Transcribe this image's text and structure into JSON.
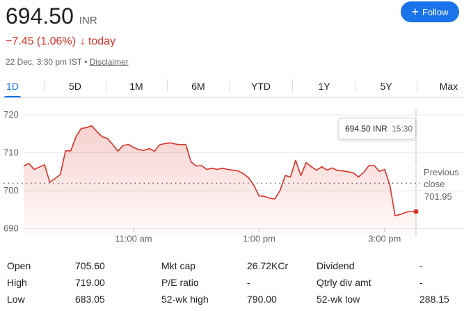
{
  "quote": {
    "price": "694.50",
    "currency": "INR",
    "change": "−7.45 (1.06%)",
    "change_arrow": "↓",
    "change_period": "today",
    "timestamp": "22 Dec, 3:30 pm IST",
    "separator": "•",
    "disclaimer": "Disclaimer",
    "follow_label": "Follow",
    "accent_color": "#1a73e8",
    "down_color": "#d93025"
  },
  "tabs": [
    "1D",
    "5D",
    "1M",
    "6M",
    "YTD",
    "1Y",
    "5Y",
    "Max"
  ],
  "active_tab": "1D",
  "chart_data": {
    "type": "line",
    "x_ticks": [
      "11:00 am",
      "1:00 pm",
      "3:00 pm"
    ],
    "y_ticks": [
      720,
      710,
      700,
      690
    ],
    "ylim": [
      688,
      722
    ],
    "grid": true,
    "previous_close": {
      "label_line1": "Previous",
      "label_line2": "close",
      "value": "701.95",
      "y": 701.95
    },
    "tooltip": {
      "value": "694.50 INR",
      "time": "15:30"
    },
    "series": [
      {
        "color": "#d93025",
        "x": [
          "09:15",
          "09:20",
          "09:25",
          "09:30",
          "09:35",
          "09:40",
          "09:45",
          "09:50",
          "09:55",
          "10:00",
          "10:05",
          "10:10",
          "10:15",
          "10:20",
          "10:25",
          "10:30",
          "10:35",
          "10:40",
          "10:45",
          "10:50",
          "10:55",
          "11:00",
          "11:05",
          "11:10",
          "11:15",
          "11:20",
          "11:25",
          "11:30",
          "11:35",
          "11:40",
          "11:45",
          "11:50",
          "11:55",
          "12:00",
          "12:05",
          "12:10",
          "12:15",
          "12:20",
          "12:25",
          "12:30",
          "12:35",
          "12:40",
          "12:45",
          "12:50",
          "12:55",
          "13:00",
          "13:05",
          "13:10",
          "13:15",
          "13:20",
          "13:25",
          "13:30",
          "13:35",
          "13:40",
          "13:45",
          "13:50",
          "13:55",
          "14:00",
          "14:05",
          "14:10",
          "14:15",
          "14:20",
          "14:25",
          "14:30",
          "14:35",
          "14:40",
          "14:45",
          "14:50",
          "14:55",
          "15:00",
          "15:05",
          "15:10",
          "15:15",
          "15:20",
          "15:25",
          "15:30"
        ],
        "values": [
          706.5,
          707.2,
          705.6,
          706.2,
          706.8,
          702.2,
          703.2,
          704.2,
          710.5,
          710.5,
          714.2,
          716.4,
          716.6,
          717.1,
          715.6,
          714.2,
          713.8,
          712.2,
          710.4,
          711.9,
          712.2,
          711.4,
          710.8,
          710.6,
          711.1,
          710.4,
          712.1,
          712.4,
          712.6,
          712.3,
          712.1,
          712.2,
          707.6,
          706.5,
          706.6,
          705.6,
          705.9,
          705.6,
          705.9,
          705.6,
          705.4,
          705.2,
          704.5,
          703.4,
          701.4,
          698.6,
          698.5,
          698.0,
          697.8,
          700.0,
          704.0,
          703.6,
          708.0,
          704.0,
          707.4,
          706.3,
          705.4,
          706.3,
          705.4,
          706.0,
          705.3,
          705.2,
          705.0,
          704.7,
          703.6,
          704.8,
          706.6,
          706.6,
          705.1,
          705.6,
          701.5,
          693.4,
          693.7,
          694.3,
          694.5,
          694.5
        ]
      }
    ]
  },
  "stats": [
    {
      "label": "Open",
      "value": "705.60"
    },
    {
      "label": "High",
      "value": "719.00"
    },
    {
      "label": "Low",
      "value": "683.05"
    },
    {
      "label": "Mkt cap",
      "value": "26.72KCr"
    },
    {
      "label": "P/E ratio",
      "value": "-"
    },
    {
      "label": "52-wk high",
      "value": "790.00"
    },
    {
      "label": "Dividend",
      "value": "-"
    },
    {
      "label": "Qtrly div amt",
      "value": "-"
    },
    {
      "label": "52-wk low",
      "value": "288.15"
    }
  ]
}
